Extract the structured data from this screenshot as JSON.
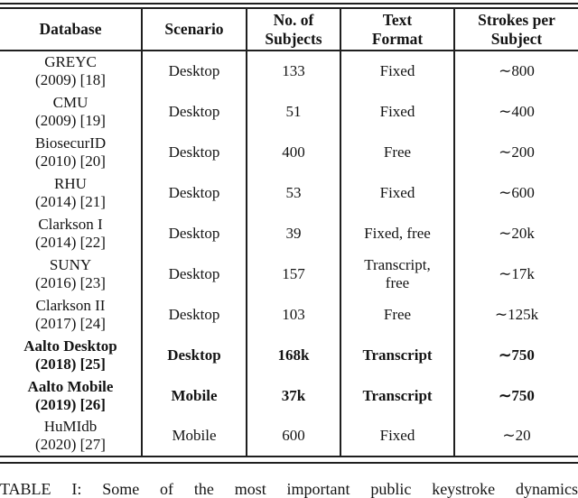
{
  "colors": {
    "background": "#ffffff",
    "text": "#141414",
    "rule": "#1f1f1f"
  },
  "table": {
    "headers": [
      {
        "label": "Database"
      },
      {
        "label": "Scenario"
      },
      {
        "label": "No. of\nSubjects"
      },
      {
        "label": "Text\nFormat"
      },
      {
        "label": "Strokes per\nSubject"
      }
    ],
    "rows": [
      {
        "database": "GREYC\n(2009) [18]",
        "scenario": "Desktop",
        "subjects": "133",
        "text_format": "Fixed",
        "strokes": "∼800",
        "bold": false
      },
      {
        "database": "CMU\n(2009) [19]",
        "scenario": "Desktop",
        "subjects": "51",
        "text_format": "Fixed",
        "strokes": "∼400",
        "bold": false
      },
      {
        "database": "BiosecurID\n(2010) [20]",
        "scenario": "Desktop",
        "subjects": "400",
        "text_format": "Free",
        "strokes": "∼200",
        "bold": false
      },
      {
        "database": "RHU\n(2014) [21]",
        "scenario": "Desktop",
        "subjects": "53",
        "text_format": "Fixed",
        "strokes": "∼600",
        "bold": false
      },
      {
        "database": "Clarkson I\n(2014) [22]",
        "scenario": "Desktop",
        "subjects": "39",
        "text_format": "Fixed, free",
        "strokes": "∼20k",
        "bold": false
      },
      {
        "database": "SUNY\n(2016) [23]",
        "scenario": "Desktop",
        "subjects": "157",
        "text_format": "Transcript,\nfree",
        "strokes": "∼17k",
        "bold": false
      },
      {
        "database": "Clarkson II\n(2017) [24]",
        "scenario": "Desktop",
        "subjects": "103",
        "text_format": "Free",
        "strokes": "∼125k",
        "bold": false
      },
      {
        "database": "Aalto Desktop\n(2018) [25]",
        "scenario": "Desktop",
        "subjects": "168k",
        "text_format": "Transcript",
        "strokes": "∼750",
        "bold": true
      },
      {
        "database": "Aalto Mobile\n(2019) [26]",
        "scenario": "Mobile",
        "subjects": "37k",
        "text_format": "Transcript",
        "strokes": "∼750",
        "bold": true
      },
      {
        "database": "HuMIdb\n(2020) [27]",
        "scenario": "Mobile",
        "subjects": "600",
        "text_format": "Fixed",
        "strokes": "∼20",
        "bold": false
      }
    ]
  },
  "caption": "TABLE I: Some of the most important public keystroke dynamics"
}
